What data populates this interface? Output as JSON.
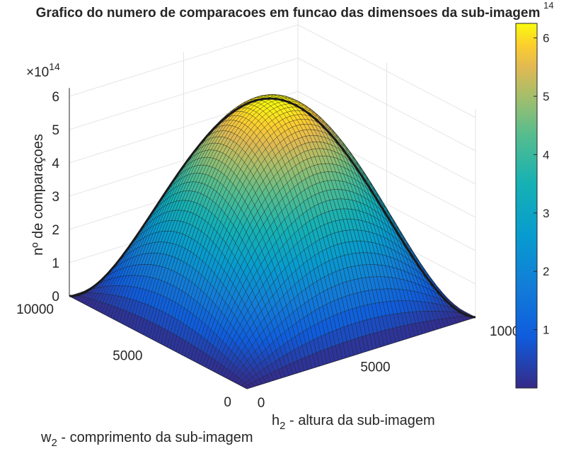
{
  "chart_data": {
    "type": "surface",
    "title": "Grafico do numero de comparacoes em funcao das dimensoes da sub-imagem",
    "zlabel": "nº de comparaçoes",
    "xlabel_main": "h",
    "xlabel_sub": "2",
    "xlabel_rest": " - altura da sub-imagem",
    "ylabel_main": "w",
    "ylabel_sub": "2",
    "ylabel_rest": " - comprimento da sub-imagem",
    "x_range": [
      0,
      10000
    ],
    "y_range": [
      0,
      10000
    ],
    "z_range": [
      0,
      6
    ],
    "z_exponent_text": "×10",
    "z_exponent": "14",
    "x_ticks": [
      "0",
      "5000",
      "10000"
    ],
    "y_ticks": [
      "0",
      "5000",
      "10000"
    ],
    "z_ticks": [
      "0",
      "1",
      "2",
      "3",
      "4",
      "5",
      "6"
    ],
    "colorbar_ticks": [
      "1",
      "2",
      "3",
      "4",
      "5",
      "6"
    ],
    "colorbar_exponent": "14",
    "colorbar_range": [
      0,
      6.25
    ],
    "colormap": "parula",
    "function": "z = h * (10000 - h) * w * (10000 - w) / 1e14",
    "z_max": 6.25,
    "grid": true
  }
}
